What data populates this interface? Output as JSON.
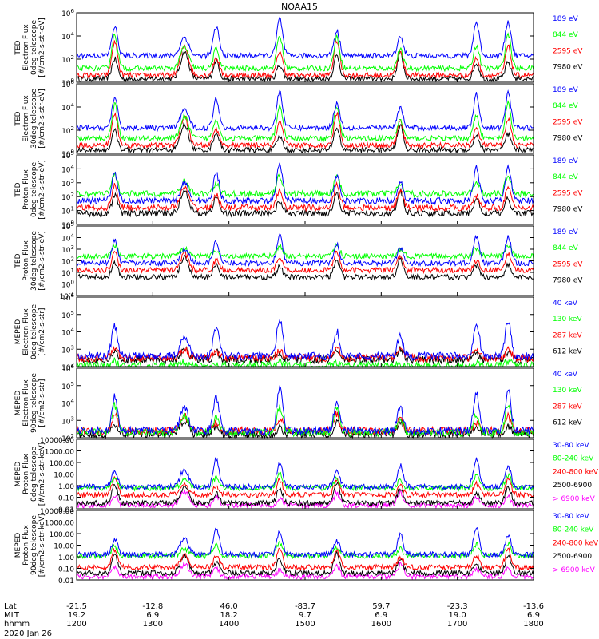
{
  "title": "NOAA15",
  "date": "2020 Jan 26",
  "chart_data": [
    {
      "type": "line",
      "ylabel": [
        "TED",
        "Electron Flux",
        "0deg telescope",
        "[#/cm2-s-str-eV]"
      ],
      "ylim": [
        1,
        1000000
      ],
      "yscale": "log",
      "ytick_labels": [
        "10^0",
        "10^2",
        "10^4",
        "10^6"
      ],
      "series": [
        {
          "name": "7980 eV",
          "color": "#000000",
          "base_log": 0.3,
          "peak_log": 2.6
        },
        {
          "name": "2595 eV",
          "color": "#ff0000",
          "base_log": 0.6,
          "peak_log": 3.6
        },
        {
          "name": "844 eV",
          "color": "#00ff00",
          "base_log": 1.2,
          "peak_log": 4.2
        },
        {
          "name": "189 eV",
          "color": "#0000ff",
          "base_log": 2.3,
          "peak_log": 5.5
        }
      ]
    },
    {
      "type": "line",
      "ylabel": [
        "TED",
        "Electron Flux",
        "30deg telescope",
        "[#/cm2-s-str-eV]"
      ],
      "ylim": [
        1,
        1000000
      ],
      "yscale": "log",
      "ytick_labels": [
        "10^0",
        "10^2",
        "10^4",
        "10^6"
      ],
      "series": [
        {
          "name": "7980 eV",
          "color": "#000000",
          "base_log": 0.3,
          "peak_log": 2.5
        },
        {
          "name": "2595 eV",
          "color": "#ff0000",
          "base_log": 0.7,
          "peak_log": 3.5
        },
        {
          "name": "844 eV",
          "color": "#00ff00",
          "base_log": 1.3,
          "peak_log": 4.3
        },
        {
          "name": "189 eV",
          "color": "#0000ff",
          "base_log": 2.2,
          "peak_log": 5.4
        }
      ]
    },
    {
      "type": "line",
      "ylabel": [
        "TED",
        "Proton Flux",
        "0deg telescope",
        "[#/cm2-s-str-eV]"
      ],
      "ylim": [
        1,
        100000
      ],
      "yscale": "log",
      "ytick_labels": [
        "10^0",
        "10^1",
        "10^2",
        "10^3",
        "10^4",
        "10^5"
      ],
      "series": [
        {
          "name": "7980 eV",
          "color": "#000000",
          "base_log": 0.8,
          "peak_log": 2.5
        },
        {
          "name": "2595 eV",
          "color": "#ff0000",
          "base_log": 1.2,
          "peak_log": 2.9
        },
        {
          "name": "844 eV",
          "color": "#00ff00",
          "base_log": 2.2,
          "peak_log": 3.6
        },
        {
          "name": "189 eV",
          "color": "#0000ff",
          "base_log": 1.7,
          "peak_log": 4.3
        }
      ]
    },
    {
      "type": "line",
      "ylabel": [
        "TED",
        "Proton Flux",
        "30deg telescope",
        "[#/cm2-s-str-eV]"
      ],
      "ylim": [
        0.1,
        100000
      ],
      "yscale": "log",
      "ytick_labels": [
        "10^-1",
        "10^0",
        "10^1",
        "10^2",
        "10^3",
        "10^4",
        "10^5"
      ],
      "series": [
        {
          "name": "7980 eV",
          "color": "#000000",
          "base_log": 0.6,
          "peak_log": 2.3
        },
        {
          "name": "2595 eV",
          "color": "#ff0000",
          "base_log": 1.2,
          "peak_log": 2.8
        },
        {
          "name": "844 eV",
          "color": "#00ff00",
          "base_log": 2.4,
          "peak_log": 3.4
        },
        {
          "name": "189 eV",
          "color": "#0000ff",
          "base_log": 1.8,
          "peak_log": 4.3
        }
      ]
    },
    {
      "type": "line",
      "ylabel": [
        "MEPED",
        "Electron Flux",
        "0deg telescope",
        "[#/cm2-s-str]"
      ],
      "ylim": [
        100,
        1000000
      ],
      "yscale": "log",
      "ytick_labels": [
        "10^2",
        "10^3",
        "10^4",
        "10^5",
        "10^6"
      ],
      "series": [
        {
          "name": "612 keV",
          "color": "#000000",
          "base_log": 2.4,
          "peak_log": 3.0
        },
        {
          "name": "287 keV",
          "color": "#ff0000",
          "base_log": 2.5,
          "peak_log": 3.1
        },
        {
          "name": "130 keV",
          "color": "#00ff00",
          "base_log": 2.05,
          "peak_log": 2.3
        },
        {
          "name": "40 keV",
          "color": "#0000ff",
          "base_log": 2.6,
          "peak_log": 4.8
        }
      ]
    },
    {
      "type": "line",
      "ylabel": [
        "MEPED",
        "Electron Flux",
        "90deg telescope",
        "[#/cm2-s-str]"
      ],
      "ylim": [
        100,
        1000000
      ],
      "yscale": "log",
      "ytick_labels": [
        "10^2",
        "10^3",
        "10^4",
        "10^5",
        "10^6"
      ],
      "series": [
        {
          "name": "612 keV",
          "color": "#000000",
          "base_log": 2.2,
          "peak_log": 3.0
        },
        {
          "name": "287 keV",
          "color": "#ff0000",
          "base_log": 2.4,
          "peak_log": 3.4
        },
        {
          "name": "130 keV",
          "color": "#00ff00",
          "base_log": 2.3,
          "peak_log": 3.9
        },
        {
          "name": "40 keV",
          "color": "#0000ff",
          "base_log": 2.4,
          "peak_log": 4.9
        }
      ]
    },
    {
      "type": "line",
      "ylabel": [
        "MEPED",
        "Proton Flux",
        "0deg telescope",
        "[#/cm2-s-str-keV]"
      ],
      "ylim": [
        0.01,
        10000
      ],
      "yscale": "log",
      "ytick_labels": [
        "0.01",
        "0.10",
        "1.00",
        "10.00",
        "100.00",
        "1000.00",
        "10000.00"
      ],
      "series": [
        {
          "name": "> 6900 keV",
          "color": "#ff00ff",
          "base_log": -1.7,
          "peak_log": -0.5
        },
        {
          "name": "2500-6900",
          "color": "#000000",
          "base_log": -1.5,
          "peak_log": 0.2
        },
        {
          "name": "240-800 keV",
          "color": "#ff0000",
          "base_log": -0.8,
          "peak_log": 0.6
        },
        {
          "name": "80-240 keV",
          "color": "#00ff00",
          "base_log": -0.2,
          "peak_log": 1.0
        },
        {
          "name": "30-80 keV",
          "color": "#0000ff",
          "base_log": -0.1,
          "peak_log": 2.4
        }
      ]
    },
    {
      "type": "line",
      "ylabel": [
        "MEPED",
        "Proton Flux",
        "90deg telescope",
        "[#/cm2-s-str-keV]"
      ],
      "ylim": [
        0.01,
        10000
      ],
      "yscale": "log",
      "ytick_labels": [
        "0.01",
        "0.10",
        "1.00",
        "10.00",
        "100.00",
        "1000.00",
        "10000.00"
      ],
      "series": [
        {
          "name": "> 6900 keV",
          "color": "#ff00ff",
          "base_log": -1.7,
          "peak_log": -0.6
        },
        {
          "name": "2500-6900",
          "color": "#000000",
          "base_log": -1.4,
          "peak_log": 0.3
        },
        {
          "name": "240-800 keV",
          "color": "#ff0000",
          "base_log": -0.9,
          "peak_log": 0.7
        },
        {
          "name": "80-240 keV",
          "color": "#00ff00",
          "base_log": 0.1,
          "peak_log": 1.2
        },
        {
          "name": "30-80 keV",
          "color": "#0000ff",
          "base_log": 0.2,
          "peak_log": 2.5
        }
      ]
    }
  ],
  "x_axis": {
    "time_range_minutes": [
      720,
      1080
    ],
    "row_labels": [
      "Lat",
      "MLT",
      "hhmm"
    ],
    "ticks": [
      {
        "lat": "-21.5",
        "mlt": "19.2",
        "hhmm": "1200"
      },
      {
        "lat": "-12.8",
        "mlt": "6.9",
        "hhmm": "1300"
      },
      {
        "lat": "46.0",
        "mlt": "18.2",
        "hhmm": "1400"
      },
      {
        "lat": "-83.7",
        "mlt": "9.7",
        "hhmm": "1500"
      },
      {
        "lat": "59.7",
        "mlt": "6.9",
        "hhmm": "1600"
      },
      {
        "lat": "-23.3",
        "mlt": "19.0",
        "hhmm": "1700"
      },
      {
        "lat": "-13.6",
        "mlt": "6.9",
        "hhmm": "1800"
      }
    ]
  },
  "pass_center_minutes": [
    750,
    805,
    830,
    880,
    925,
    975,
    1035,
    1060
  ]
}
